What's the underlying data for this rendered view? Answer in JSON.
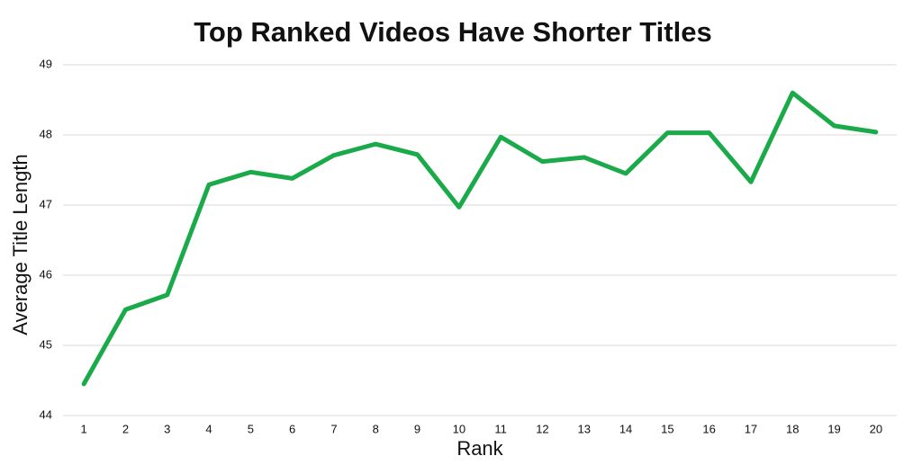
{
  "chart_data": {
    "type": "line",
    "title": "Top Ranked Videos Have Shorter Titles",
    "x_label": "Rank",
    "y_label": "Average Title Length",
    "categories": [
      "1",
      "2",
      "3",
      "4",
      "5",
      "6",
      "7",
      "8",
      "9",
      "10",
      "11",
      "12",
      "13",
      "14",
      "15",
      "16",
      "17",
      "18",
      "19",
      "20"
    ],
    "series": [
      {
        "name": "Average Title Length",
        "color": "#1aaa4a",
        "values": [
          44.45,
          45.51,
          45.72,
          47.29,
          47.47,
          47.38,
          47.71,
          47.87,
          47.72,
          46.97,
          47.97,
          47.62,
          47.68,
          47.45,
          48.03,
          48.03,
          47.33,
          48.6,
          48.13,
          48.04
        ]
      }
    ],
    "ylim": [
      44,
      49
    ],
    "yticks": [
      44,
      45,
      46,
      47,
      48,
      49
    ],
    "grid": true
  }
}
